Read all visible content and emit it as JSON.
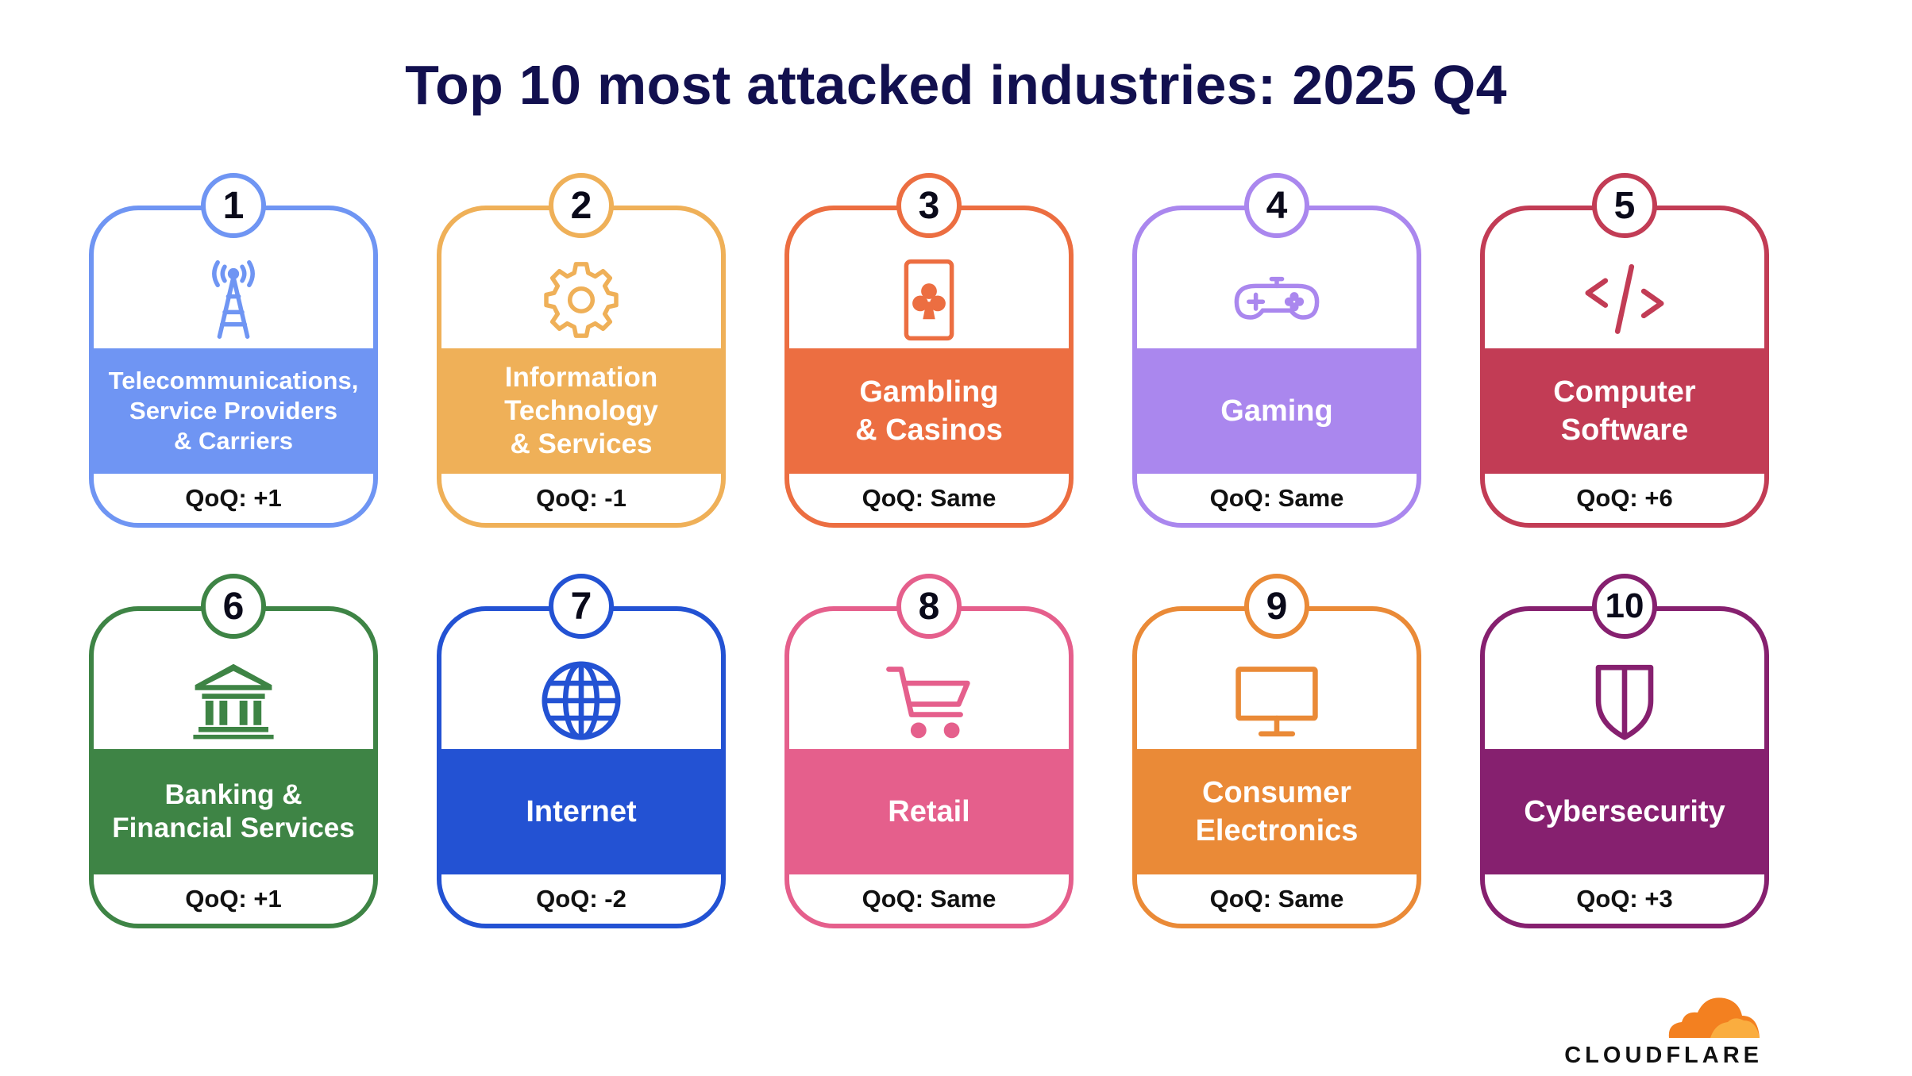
{
  "title": "Top 10 most attacked industries: 2025 Q4",
  "industries": [
    {
      "rank": "1",
      "name": "Telecommunications,\nService Providers\n& Carriers",
      "qoq": "QoQ: +1",
      "color": "#6f95f3",
      "icon": "cell-tower-icon"
    },
    {
      "rank": "2",
      "name": "Information\nTechnology\n& Services",
      "qoq": "QoQ: -1",
      "color": "#efb058",
      "icon": "gear-icon"
    },
    {
      "rank": "3",
      "name": "Gambling\n& Casinos",
      "qoq": "QoQ: Same",
      "color": "#ec6e41",
      "icon": "playing-card-icon"
    },
    {
      "rank": "4",
      "name": "Gaming",
      "qoq": "QoQ: Same",
      "color": "#aa87ee",
      "icon": "gamepad-icon"
    },
    {
      "rank": "5",
      "name": "Computer\nSoftware",
      "qoq": "QoQ: +6",
      "color": "#c23c55",
      "icon": "code-icon"
    },
    {
      "rank": "6",
      "name": "Banking &\nFinancial Services",
      "qoq": "QoQ: +1",
      "color": "#3e8445",
      "icon": "bank-icon"
    },
    {
      "rank": "7",
      "name": "Internet",
      "qoq": "QoQ: -2",
      "color": "#2352d3",
      "icon": "globe-icon"
    },
    {
      "rank": "8",
      "name": "Retail",
      "qoq": "QoQ: Same",
      "color": "#e55f8c",
      "icon": "shopping-cart-icon"
    },
    {
      "rank": "9",
      "name": "Consumer\nElectronics",
      "qoq": "QoQ: Same",
      "color": "#ea8a37",
      "icon": "monitor-icon"
    },
    {
      "rank": "10",
      "name": "Cybersecurity",
      "qoq": "QoQ: +3",
      "color": "#86206f",
      "icon": "shield-icon"
    }
  ],
  "logo": {
    "text": "CLOUDFLARE"
  }
}
